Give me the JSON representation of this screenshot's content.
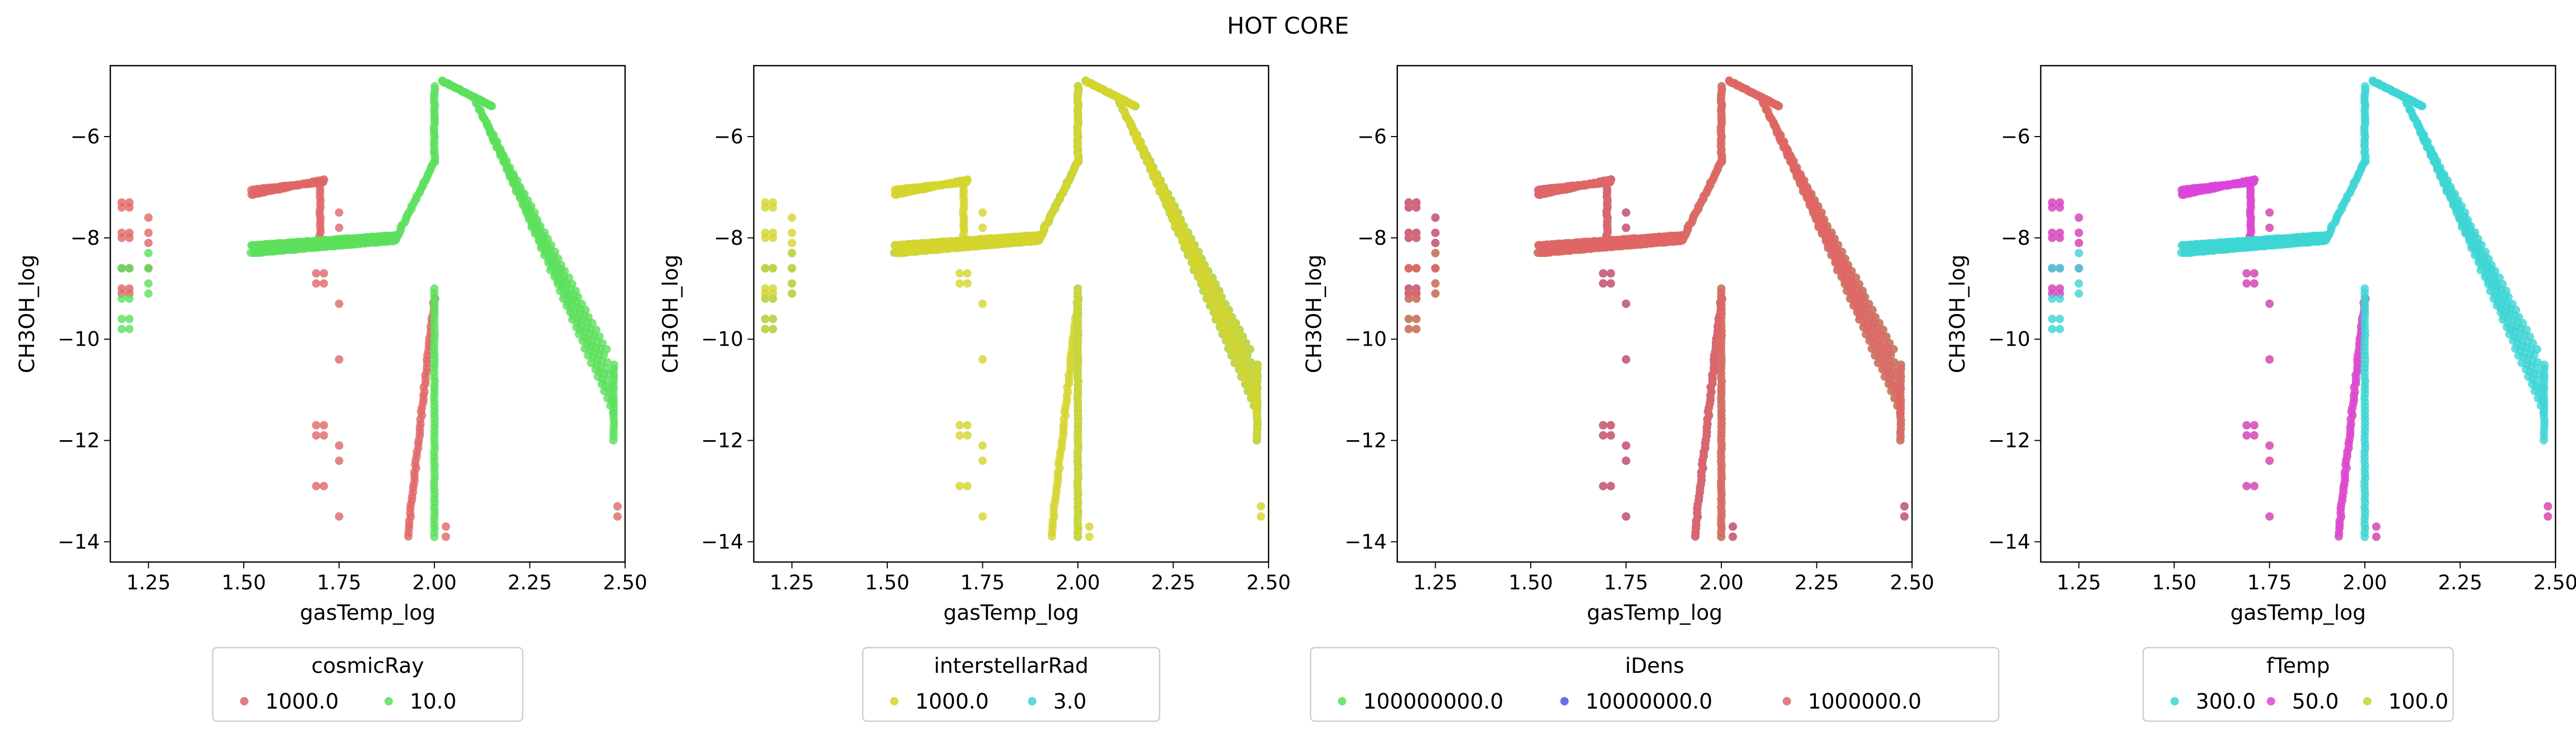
{
  "figure_title": "HOT CORE",
  "chart_data": [
    {
      "type": "scatter",
      "xlabel": "gasTemp_log",
      "ylabel": "CH3OH_log",
      "xlim": [
        1.15,
        2.5
      ],
      "ylim": [
        -14.4,
        -4.6
      ],
      "xticks": [
        "1.25",
        "1.50",
        "1.75",
        "2.00",
        "2.25",
        "2.50"
      ],
      "yticks": [
        "−14",
        "−12",
        "−10",
        "−8",
        "−6"
      ],
      "legend": {
        "title": "cosmicRay",
        "placement": "below",
        "labels": [
          "1000.0",
          "10.0"
        ]
      },
      "series": [
        {
          "name": "1000.0",
          "color": "#e06666"
        },
        {
          "name": "10.0",
          "color": "#5ce05c"
        }
      ]
    },
    {
      "type": "scatter",
      "xlabel": "gasTemp_log",
      "ylabel": "CH3OH_log",
      "xlim": [
        1.15,
        2.5
      ],
      "ylim": [
        -14.4,
        -4.6
      ],
      "xticks": [
        "1.25",
        "1.50",
        "1.75",
        "2.00",
        "2.25",
        "2.50"
      ],
      "yticks": [
        "−14",
        "−12",
        "−10",
        "−8",
        "−6"
      ],
      "legend": {
        "title": "interstellarRad",
        "placement": "below",
        "labels": [
          "1000.0",
          "3.0"
        ]
      },
      "series": [
        {
          "name": "1000.0",
          "color": "#d4d42e"
        },
        {
          "name": "3.0",
          "color": "#3ed4d4"
        }
      ]
    },
    {
      "type": "scatter",
      "xlabel": "gasTemp_log",
      "ylabel": "CH3OH_log",
      "xlim": [
        1.15,
        2.5
      ],
      "ylim": [
        -14.4,
        -4.6
      ],
      "xticks": [
        "1.25",
        "1.50",
        "1.75",
        "2.00",
        "2.25",
        "2.50"
      ],
      "yticks": [
        "−14",
        "−12",
        "−10",
        "−8",
        "−6"
      ],
      "legend": {
        "title": "iDens",
        "placement": "below",
        "labels": [
          "100000000.0",
          "10000000.0",
          "1000000.0"
        ]
      },
      "series": [
        {
          "name": "100000000.0",
          "color": "#5ce05c"
        },
        {
          "name": "10000000.0",
          "color": "#5555dd"
        },
        {
          "name": "1000000.0",
          "color": "#e06666"
        }
      ]
    },
    {
      "type": "scatter",
      "xlabel": "gasTemp_log",
      "ylabel": "CH3OH_log",
      "xlim": [
        1.15,
        2.5
      ],
      "ylim": [
        -14.4,
        -4.6
      ],
      "xticks": [
        "1.25",
        "1.50",
        "1.75",
        "2.00",
        "2.25",
        "2.50"
      ],
      "yticks": [
        "−14",
        "−12",
        "−10",
        "−8",
        "−6"
      ],
      "legend": {
        "title": "fTemp",
        "placement": "below",
        "labels": [
          "300.0",
          "50.0",
          "100.0"
        ]
      },
      "series": [
        {
          "name": "300.0",
          "color": "#3ed4d4"
        },
        {
          "name": "50.0",
          "color": "#dd44dd"
        },
        {
          "name": "100.0",
          "color": "#c8d42e"
        }
      ]
    }
  ]
}
